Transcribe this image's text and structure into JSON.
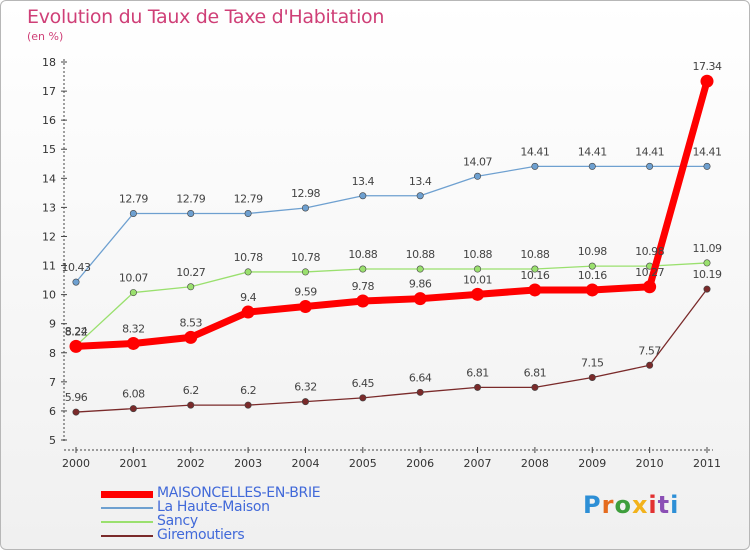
{
  "title": "Evolution du Taux de Taxe d'Habitation",
  "subtitle": "(en %)",
  "logo": {
    "text": "Proxiti",
    "letter_colors": [
      "#2d8fd6",
      "#e56b1e",
      "#3e9e3c",
      "#f2b21b",
      "#e23131",
      "#8b4fb5",
      "#2d8fd6"
    ]
  },
  "chart_data": {
    "type": "line",
    "x": [
      "2000",
      "2001",
      "2002",
      "2003",
      "2004",
      "2005",
      "2006",
      "2007",
      "2008",
      "2009",
      "2010",
      "2011"
    ],
    "ylim": [
      5,
      18
    ],
    "yticks": [
      "5",
      "6",
      "7",
      "8",
      "9",
      "10",
      "11",
      "12",
      "13",
      "14",
      "15",
      "16",
      "17",
      "18"
    ],
    "grid": false,
    "legend_position": "bottom-left",
    "series": [
      {
        "name": "MAISONCELLES-EN-BRIE",
        "color": "#ff0000",
        "highlight": true,
        "values": [
          8.22,
          8.32,
          8.53,
          9.4,
          9.59,
          9.78,
          9.86,
          10.01,
          10.16,
          10.16,
          10.27,
          17.34
        ],
        "labels": [
          "8.22",
          "8.32",
          "8.53",
          "9.4",
          "9.59",
          "9.78",
          "9.86",
          "10.01",
          "10.16",
          "10.16",
          "10.27",
          "17.34"
        ]
      },
      {
        "name": "La Haute-Maison",
        "color": "#6ea0d0",
        "values": [
          10.43,
          12.79,
          12.79,
          12.79,
          12.98,
          13.4,
          13.4,
          14.07,
          14.41,
          14.41,
          14.41,
          14.41
        ],
        "labels": [
          "10.43",
          "12.79",
          "12.79",
          "12.79",
          "12.98",
          "13.4",
          "13.4",
          "14.07",
          "14.41",
          "14.41",
          "14.41",
          "14.41"
        ]
      },
      {
        "name": "Sancy",
        "color": "#9ae06e",
        "values": [
          8.24,
          10.07,
          10.27,
          10.78,
          10.78,
          10.88,
          10.88,
          10.88,
          10.88,
          10.98,
          10.98,
          11.09
        ],
        "labels": [
          "8.24",
          "10.07",
          "10.27",
          "10.78",
          "10.78",
          "10.88",
          "10.88",
          "10.88",
          "10.88",
          "10.98",
          "10.98",
          "11.09"
        ]
      },
      {
        "name": "Giremoutiers",
        "color": "#7a2a2a",
        "values": [
          5.96,
          6.08,
          6.2,
          6.2,
          6.32,
          6.45,
          6.64,
          6.81,
          6.81,
          7.15,
          7.57,
          10.19
        ],
        "labels": [
          "5.96",
          "6.08",
          "6.2",
          "6.2",
          "6.32",
          "6.45",
          "6.64",
          "6.81",
          "6.81",
          "7.15",
          "7.57",
          "10.19"
        ]
      }
    ]
  }
}
